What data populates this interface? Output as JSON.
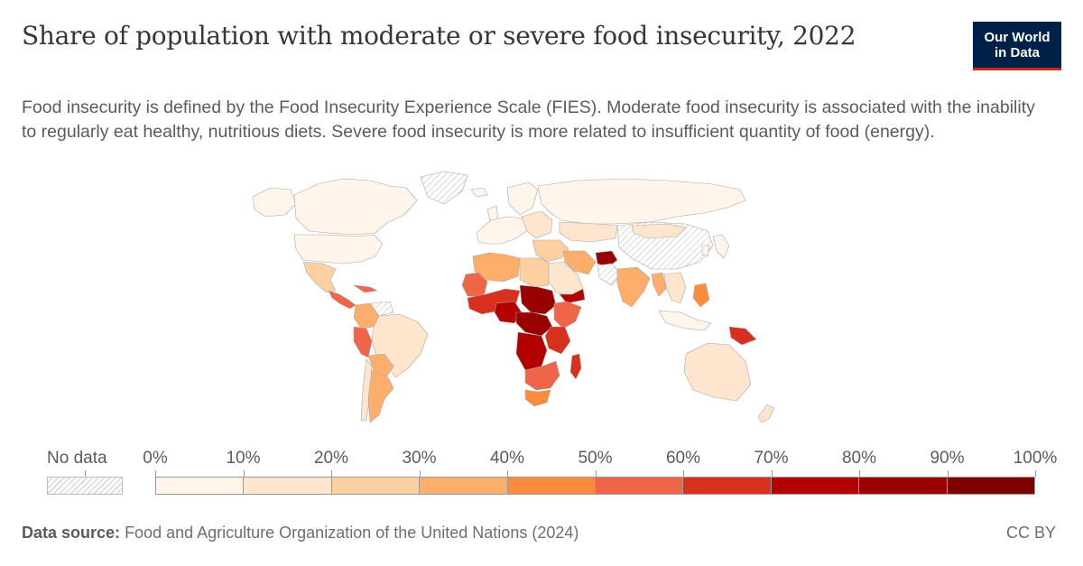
{
  "title": "Share of population with moderate or severe food insecurity, 2022",
  "subtitle": "Food insecurity is defined by the Food Insecurity Experience Scale (FIES). Moderate food insecurity is associated with the inability to regularly eat healthy, nutritious diets. Severe food insecurity is more related to insufficient quantity of food (energy).",
  "logo": {
    "line1": "Our World",
    "line2": "in Data"
  },
  "legend": {
    "no_data_label": "No data",
    "ticks": [
      "0%",
      "10%",
      "20%",
      "30%",
      "40%",
      "50%",
      "60%",
      "70%",
      "80%",
      "90%",
      "100%"
    ],
    "bin_colors": [
      "#fff5eb",
      "#fee6ce",
      "#fdd0a2",
      "#fdae6b",
      "#fd8d3c",
      "#ef6548",
      "#d7301f",
      "#b30000",
      "#990000",
      "#7f0000"
    ]
  },
  "footer": {
    "source_label": "Data source:",
    "source_text": "Food and Agriculture Organization of the United Nations (2024)",
    "license": "CC BY"
  },
  "map": {
    "regions": [
      {
        "name": "canada",
        "value": 7
      },
      {
        "name": "alaska",
        "value": 7
      },
      {
        "name": "usa",
        "value": 8
      },
      {
        "name": "greenland",
        "value": null
      },
      {
        "name": "mexico",
        "value": 24
      },
      {
        "name": "central-america",
        "value": 52
      },
      {
        "name": "caribbean",
        "value": 50
      },
      {
        "name": "venezuela",
        "value": null
      },
      {
        "name": "colombia-andes",
        "value": 35
      },
      {
        "name": "peru",
        "value": 50
      },
      {
        "name": "brazil",
        "value": 18
      },
      {
        "name": "bolivia-paraguay",
        "value": 30
      },
      {
        "name": "argentina",
        "value": 35
      },
      {
        "name": "chile",
        "value": 18
      },
      {
        "name": "iceland-uk-scandinavia",
        "value": 5
      },
      {
        "name": "western-europe",
        "value": 6
      },
      {
        "name": "eastern-europe",
        "value": 10
      },
      {
        "name": "russia",
        "value": 7
      },
      {
        "name": "kazakhstan",
        "value": 14
      },
      {
        "name": "morocco-algeria",
        "value": 30
      },
      {
        "name": "libya-egypt",
        "value": 27
      },
      {
        "name": "western-sahara-mauritania",
        "value": 55
      },
      {
        "name": "sahel-west",
        "value": 60
      },
      {
        "name": "nigeria",
        "value": 70
      },
      {
        "name": "chad-sudan",
        "value": 80
      },
      {
        "name": "central-africa",
        "value": 85
      },
      {
        "name": "ethiopia-horn",
        "value": 55
      },
      {
        "name": "yemen",
        "value": 70
      },
      {
        "name": "kenya-tanzania",
        "value": 60
      },
      {
        "name": "drc-angola",
        "value": 75
      },
      {
        "name": "southern-africa",
        "value": 58
      },
      {
        "name": "south-africa",
        "value": 40
      },
      {
        "name": "madagascar",
        "value": 65
      },
      {
        "name": "turkey-middle-east",
        "value": 24
      },
      {
        "name": "saudi-arabia",
        "value": 18
      },
      {
        "name": "iran",
        "value": 30
      },
      {
        "name": "afghanistan",
        "value": 80
      },
      {
        "name": "pakistan",
        "value": null
      },
      {
        "name": "india",
        "value": 30
      },
      {
        "name": "china",
        "value": null
      },
      {
        "name": "mongolia",
        "value": 18
      },
      {
        "name": "southeast-asia",
        "value": 18
      },
      {
        "name": "myanmar",
        "value": 30
      },
      {
        "name": "philippines",
        "value": 42
      },
      {
        "name": "indonesia",
        "value": 7
      },
      {
        "name": "papua-new-guinea",
        "value": 62
      },
      {
        "name": "japan-korea",
        "value": 3
      },
      {
        "name": "australia",
        "value": 13
      },
      {
        "name": "new-zealand",
        "value": 14
      }
    ]
  }
}
